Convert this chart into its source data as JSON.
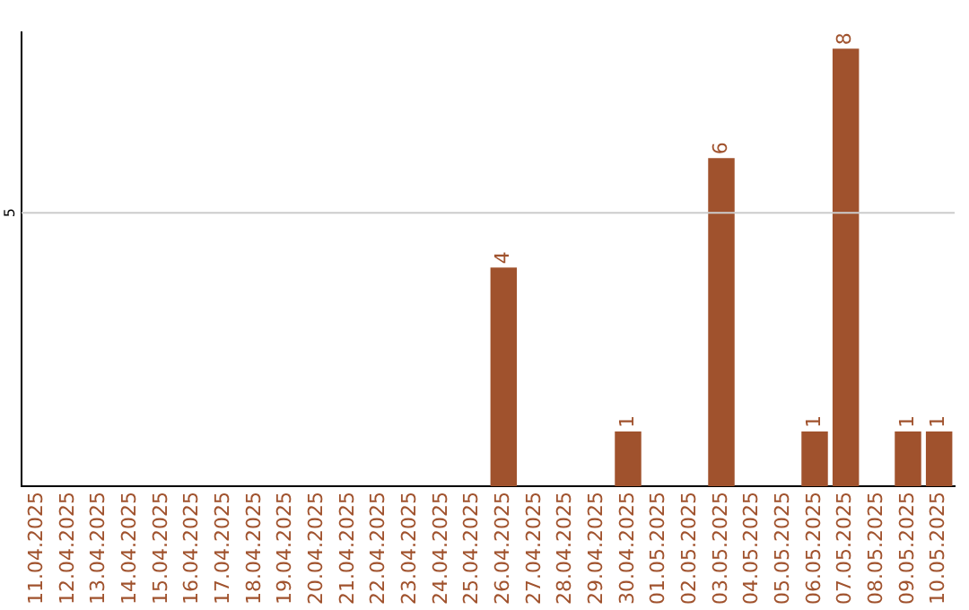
{
  "chart_data": {
    "type": "bar",
    "categories": [
      "11.04.2025",
      "12.04.2025",
      "13.04.2025",
      "14.04.2025",
      "15.04.2025",
      "16.04.2025",
      "17.04.2025",
      "18.04.2025",
      "19.04.2025",
      "20.04.2025",
      "21.04.2025",
      "22.04.2025",
      "23.04.2025",
      "24.04.2025",
      "25.04.2025",
      "26.04.2025",
      "27.04.2025",
      "28.04.2025",
      "29.04.2025",
      "30.04.2025",
      "01.05.2025",
      "02.05.2025",
      "03.05.2025",
      "04.05.2025",
      "05.05.2025",
      "06.05.2025",
      "07.05.2025",
      "08.05.2025",
      "09.05.2025",
      "10.05.2025"
    ],
    "values": [
      null,
      null,
      null,
      null,
      null,
      null,
      null,
      null,
      null,
      null,
      null,
      null,
      null,
      null,
      null,
      4,
      null,
      null,
      null,
      1,
      null,
      null,
      6,
      null,
      null,
      1,
      8,
      null,
      1,
      1
    ],
    "data_labels": true,
    "color": "#a0522d",
    "ylim": [
      0,
      8.3
    ],
    "ref_lines": [
      {
        "axis": "y",
        "value": 5,
        "label": "5",
        "color": "#cccccc"
      }
    ]
  }
}
